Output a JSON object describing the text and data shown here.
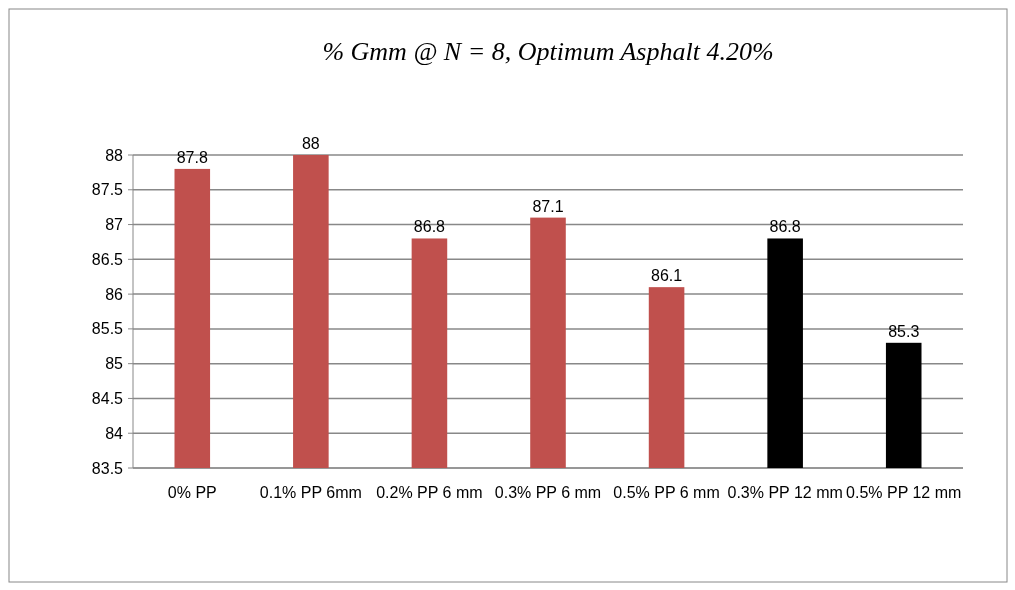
{
  "chart_data": {
    "type": "bar",
    "title": "% Gmm @ N = 8, Optimum Asphalt 4.20%",
    "categories": [
      "0% PP",
      "0.1% PP 6mm",
      "0.2% PP 6 mm",
      "0.3% PP 6 mm",
      "0.5% PP 6 mm",
      "0.3% PP 12 mm",
      "0.5% PP 12 mm"
    ],
    "values": [
      87.8,
      88,
      86.8,
      87.1,
      86.1,
      86.8,
      85.3
    ],
    "colors": [
      "#c0504d",
      "#c0504d",
      "#c0504d",
      "#c0504d",
      "#c0504d",
      "#000000",
      "#000000"
    ],
    "ylim": [
      83.5,
      88
    ],
    "yticks": [
      83.5,
      84,
      84.5,
      85,
      85.5,
      86,
      86.5,
      87,
      87.5,
      88
    ],
    "grid": "y",
    "data_labels": true
  }
}
